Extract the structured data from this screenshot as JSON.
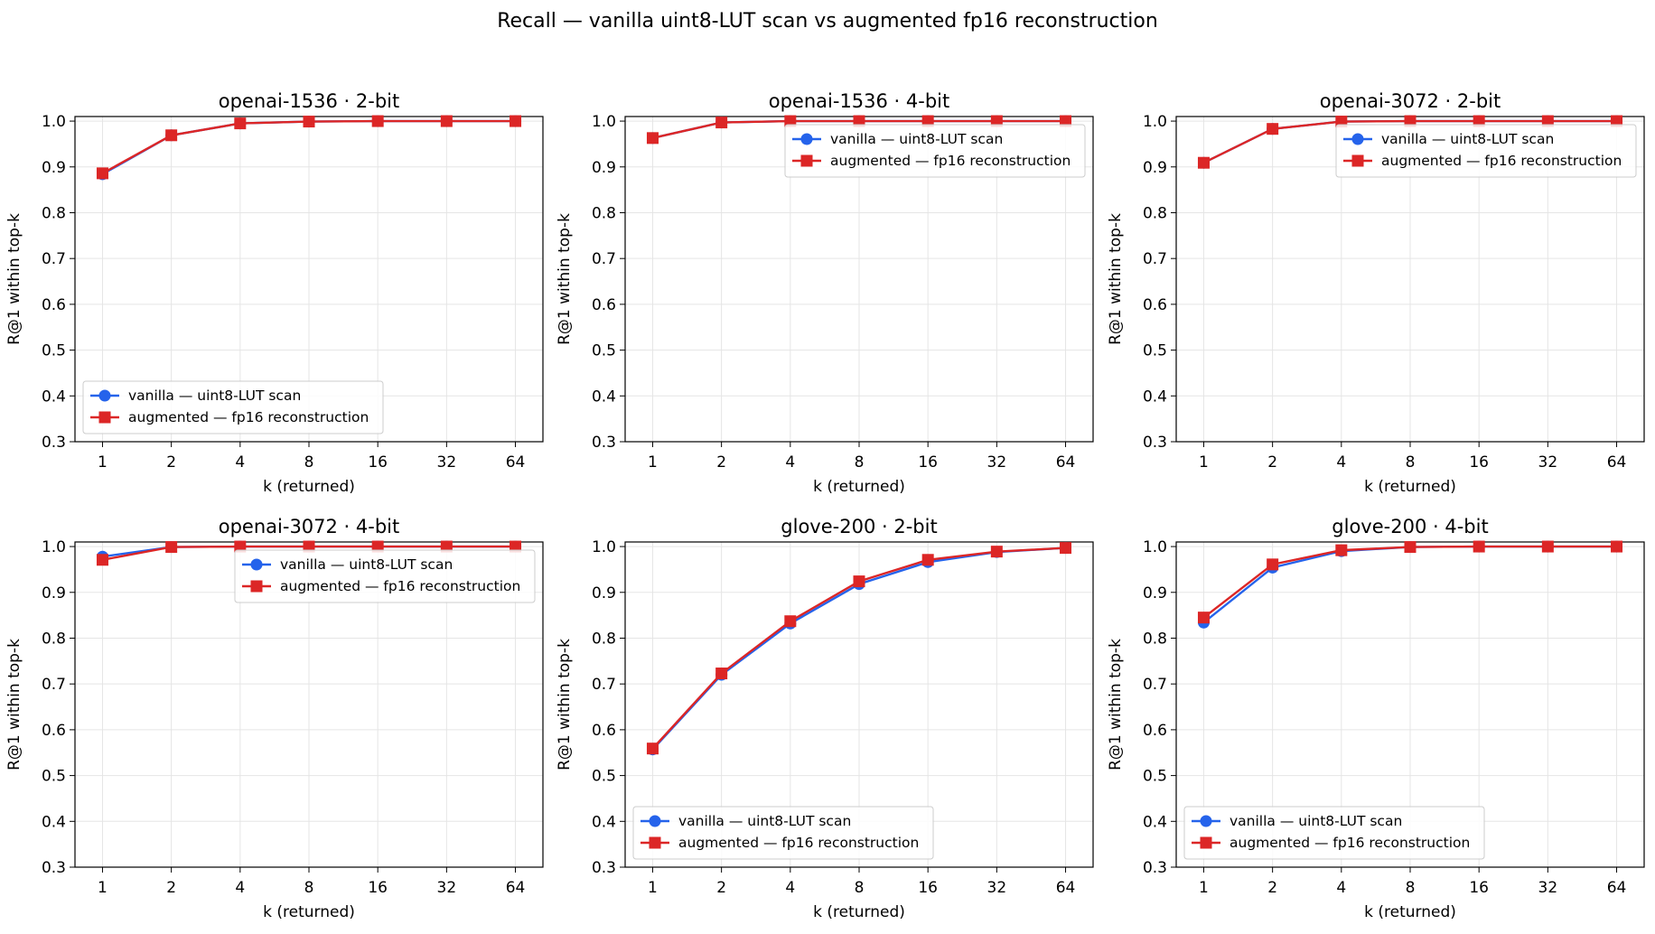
{
  "figure": {
    "suptitle": "Recall — vanilla uint8-LUT scan vs augmented fp16 reconstruction"
  },
  "colors": {
    "vanilla": "#2563eb",
    "augmented": "#dc2626",
    "grid": "#e5e5e5",
    "axes": "#000000"
  },
  "chart_data": [
    {
      "type": "line",
      "title": "openai-1536 · 2-bit",
      "xlabel": "k (returned)",
      "ylabel": "R@1 within top-k",
      "x": [
        "1",
        "2",
        "4",
        "8",
        "16",
        "32",
        "64"
      ],
      "ylim": [
        0.3,
        1.01
      ],
      "yticks": [
        "0.3",
        "0.4",
        "0.5",
        "0.6",
        "0.7",
        "0.8",
        "0.9",
        "1.0"
      ],
      "grid": true,
      "legend": "lower-left",
      "series": [
        {
          "name": "vanilla — uint8-LUT scan",
          "marker": "circle",
          "values": [
            0.884,
            0.969,
            0.995,
            0.999,
            1.0,
            1.0,
            1.0
          ]
        },
        {
          "name": "augmented — fp16 reconstruction",
          "marker": "square",
          "values": [
            0.886,
            0.969,
            0.995,
            0.999,
            1.0,
            1.0,
            1.0
          ]
        }
      ]
    },
    {
      "type": "line",
      "title": "openai-1536 · 4-bit",
      "xlabel": "k (returned)",
      "ylabel": "R@1 within top-k",
      "x": [
        "1",
        "2",
        "4",
        "8",
        "16",
        "32",
        "64"
      ],
      "ylim": [
        0.3,
        1.01
      ],
      "yticks": [
        "0.3",
        "0.4",
        "0.5",
        "0.6",
        "0.7",
        "0.8",
        "0.9",
        "1.0"
      ],
      "grid": true,
      "legend": "upper-right",
      "series": [
        {
          "name": "vanilla — uint8-LUT scan",
          "marker": "circle",
          "values": [
            0.963,
            0.997,
            1.0,
            1.0,
            1.0,
            1.0,
            1.0
          ]
        },
        {
          "name": "augmented — fp16 reconstruction",
          "marker": "square",
          "values": [
            0.963,
            0.997,
            1.0,
            1.0,
            1.0,
            1.0,
            1.0
          ]
        }
      ]
    },
    {
      "type": "line",
      "title": "openai-3072 · 2-bit",
      "xlabel": "k (returned)",
      "ylabel": "R@1 within top-k",
      "x": [
        "1",
        "2",
        "4",
        "8",
        "16",
        "32",
        "64"
      ],
      "ylim": [
        0.3,
        1.01
      ],
      "yticks": [
        "0.3",
        "0.4",
        "0.5",
        "0.6",
        "0.7",
        "0.8",
        "0.9",
        "1.0"
      ],
      "grid": true,
      "legend": "upper-right",
      "series": [
        {
          "name": "vanilla — uint8-LUT scan",
          "marker": "circle",
          "values": [
            0.909,
            0.983,
            0.999,
            1.0,
            1.0,
            1.0,
            1.0
          ]
        },
        {
          "name": "augmented — fp16 reconstruction",
          "marker": "square",
          "values": [
            0.909,
            0.983,
            0.999,
            1.0,
            1.0,
            1.0,
            1.0
          ]
        }
      ]
    },
    {
      "type": "line",
      "title": "openai-3072 · 4-bit",
      "xlabel": "k (returned)",
      "ylabel": "R@1 within top-k",
      "x": [
        "1",
        "2",
        "4",
        "8",
        "16",
        "32",
        "64"
      ],
      "ylim": [
        0.3,
        1.01
      ],
      "yticks": [
        "0.3",
        "0.4",
        "0.5",
        "0.6",
        "0.7",
        "0.8",
        "0.9",
        "1.0"
      ],
      "grid": true,
      "legend": "upper-right",
      "series": [
        {
          "name": "vanilla — uint8-LUT scan",
          "marker": "circle",
          "values": [
            0.978,
            0.999,
            1.0,
            1.0,
            1.0,
            1.0,
            1.0
          ]
        },
        {
          "name": "augmented — fp16 reconstruction",
          "marker": "square",
          "values": [
            0.971,
            0.999,
            1.0,
            1.0,
            1.0,
            1.0,
            1.0
          ]
        }
      ]
    },
    {
      "type": "line",
      "title": "glove-200 · 2-bit",
      "xlabel": "k (returned)",
      "ylabel": "R@1 within top-k",
      "x": [
        "1",
        "2",
        "4",
        "8",
        "16",
        "32",
        "64"
      ],
      "ylim": [
        0.3,
        1.01
      ],
      "yticks": [
        "0.3",
        "0.4",
        "0.5",
        "0.6",
        "0.7",
        "0.8",
        "0.9",
        "1.0"
      ],
      "grid": true,
      "legend": "lower-left",
      "series": [
        {
          "name": "vanilla — uint8-LUT scan",
          "marker": "circle",
          "values": [
            0.557,
            0.72,
            0.832,
            0.918,
            0.966,
            0.988,
            0.997
          ]
        },
        {
          "name": "augmented — fp16 reconstruction",
          "marker": "square",
          "values": [
            0.559,
            0.723,
            0.837,
            0.924,
            0.971,
            0.989,
            0.997
          ]
        }
      ]
    },
    {
      "type": "line",
      "title": "glove-200 · 4-bit",
      "xlabel": "k (returned)",
      "ylabel": "R@1 within top-k",
      "x": [
        "1",
        "2",
        "4",
        "8",
        "16",
        "32",
        "64"
      ],
      "ylim": [
        0.3,
        1.01
      ],
      "yticks": [
        "0.3",
        "0.4",
        "0.5",
        "0.6",
        "0.7",
        "0.8",
        "0.9",
        "1.0"
      ],
      "grid": true,
      "legend": "lower-left",
      "series": [
        {
          "name": "vanilla — uint8-LUT scan",
          "marker": "circle",
          "values": [
            0.834,
            0.954,
            0.99,
            0.999,
            1.0,
            1.0,
            1.0
          ]
        },
        {
          "name": "augmented — fp16 reconstruction",
          "marker": "square",
          "values": [
            0.845,
            0.961,
            0.992,
            0.999,
            1.0,
            1.0,
            1.0
          ]
        }
      ]
    }
  ]
}
